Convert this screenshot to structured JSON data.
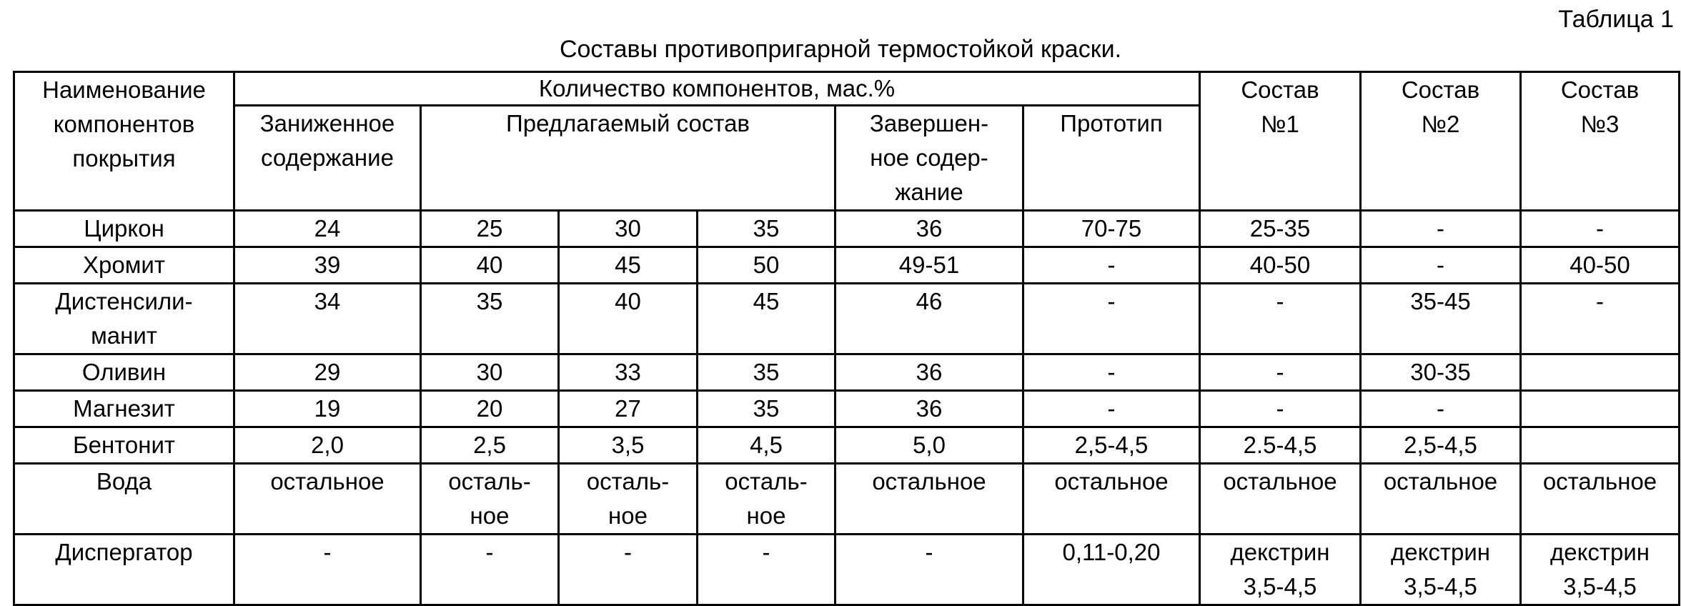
{
  "table_label": "Таблица 1",
  "title": "Составы противопригарной термостойкой краски.",
  "header": {
    "name_col": "Наименование\nкомпонентов\nпокрытия",
    "quantity": "Количество компонентов, мас.%",
    "reduced": "Заниженное\nсодержание",
    "proposed": "Предлагаемый состав",
    "increased": "Завершен-\nное содер-\nжание",
    "prototype": "Прототип",
    "comp1": "Состав\n№1",
    "comp2": "Состав\n№2",
    "comp3": "Состав\n№3"
  },
  "rows": [
    {
      "name": "Циркон",
      "cells": [
        "24",
        "25",
        "30",
        "35",
        "36",
        "70-75",
        "25-35",
        "-",
        "-"
      ]
    },
    {
      "name": "Хромит",
      "cells": [
        "39",
        "40",
        "45",
        "50",
        "49-51",
        "-",
        "40-50",
        "-",
        "40-50"
      ]
    },
    {
      "name": "Дистенсили-\nманит",
      "cells": [
        "34",
        "35",
        "40",
        "45",
        "46",
        "-",
        "-",
        "35-45",
        "-"
      ]
    },
    {
      "name": "Оливин",
      "cells": [
        "29",
        "30",
        "33",
        "35",
        "36",
        "-",
        "-",
        "30-35",
        ""
      ]
    },
    {
      "name": "Магнезит",
      "cells": [
        "19",
        "20",
        "27",
        "35",
        "36",
        "-",
        "-",
        "-",
        ""
      ]
    },
    {
      "name": "Бентонит",
      "cells": [
        "2,0",
        "2,5",
        "3,5",
        "4,5",
        "5,0",
        "2,5-4,5",
        "2.5-4,5",
        "2,5-4,5",
        ""
      ]
    },
    {
      "name": "Вода",
      "cells": [
        "остальное",
        "осталь-\nное",
        "осталь-\nное",
        "осталь-\nное",
        "остальное",
        "остальное",
        "остальное",
        "остальное",
        "остальное"
      ]
    },
    {
      "name": "Диспергатор",
      "cells": [
        "-",
        "-",
        "-",
        "-",
        "-",
        "0,11-0,20",
        "декстрин\n3,5-4,5",
        "декстрин\n3,5-4,5",
        "декстрин\n3,5-4,5"
      ]
    }
  ]
}
